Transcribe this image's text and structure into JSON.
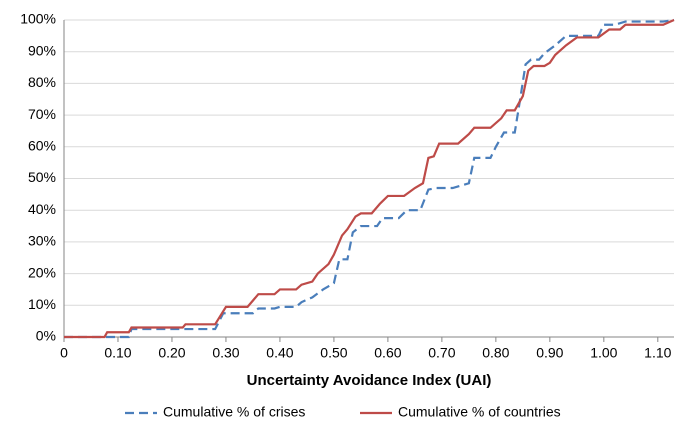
{
  "chart_data": {
    "type": "line",
    "x_label": "Uncertainty Avoidance Index (UAI)",
    "xlim": [
      0,
      1.13
    ],
    "xticks": [
      0,
      {
        "value": 0.1,
        "label": "0.10"
      },
      {
        "value": 0.2,
        "label": "0.20"
      },
      {
        "value": 0.3,
        "label": "0.30"
      },
      {
        "value": 0.4,
        "label": "0.40"
      },
      {
        "value": 0.5,
        "label": "0.50"
      },
      {
        "value": 0.6,
        "label": "0.60"
      },
      {
        "value": 0.7,
        "label": "0.70"
      },
      {
        "value": 0.8,
        "label": "0.80"
      },
      {
        "value": 0.9,
        "label": "0.90"
      },
      {
        "value": 1.0,
        "label": "1.00"
      },
      {
        "value": 1.1,
        "label": "1.10"
      }
    ],
    "ylim": [
      0,
      100
    ],
    "yticks": [
      {
        "value": 0,
        "label": "0%"
      },
      {
        "value": 10,
        "label": "10%"
      },
      {
        "value": 20,
        "label": "20%"
      },
      {
        "value": 30,
        "label": "30%"
      },
      {
        "value": 40,
        "label": "40%"
      },
      {
        "value": 50,
        "label": "50%"
      },
      {
        "value": 60,
        "label": "60%"
      },
      {
        "value": 70,
        "label": "70%"
      },
      {
        "value": 80,
        "label": "80%"
      },
      {
        "value": 90,
        "label": "90%"
      },
      {
        "value": 100,
        "label": "100%"
      }
    ],
    "grid": true,
    "legend": "bottom",
    "series": [
      {
        "name": "Cumulative % of crises",
        "color": "#4a7ebb",
        "style": "dashed",
        "x": [
          0,
          0.12,
          0.125,
          0.28,
          0.295,
          0.35,
          0.36,
          0.39,
          0.4,
          0.43,
          0.44,
          0.46,
          0.48,
          0.49,
          0.5,
          0.51,
          0.525,
          0.535,
          0.55,
          0.58,
          0.59,
          0.62,
          0.635,
          0.66,
          0.675,
          0.69,
          0.72,
          0.75,
          0.76,
          0.79,
          0.8,
          0.815,
          0.835,
          0.845,
          0.855,
          0.865,
          0.88,
          0.89,
          0.91,
          0.93,
          0.99,
          1.0,
          1.02,
          1.04,
          1.11,
          1.13
        ],
        "values": [
          0,
          0,
          2.5,
          2.5,
          7.5,
          7.5,
          9,
          9,
          9.5,
          9.5,
          11,
          12.5,
          15,
          16,
          17,
          24.5,
          24.5,
          33,
          35,
          35,
          37.5,
          37.5,
          40,
          40,
          46.5,
          47,
          47,
          48.5,
          56.5,
          56.5,
          60,
          64.5,
          64.5,
          75,
          86,
          87.5,
          87.5,
          89.5,
          92,
          95,
          95,
          98.5,
          98.5,
          99.5,
          99.5,
          100
        ]
      },
      {
        "name": "Cumulative % of countries",
        "color": "#be4b48",
        "style": "solid",
        "x": [
          0,
          0.075,
          0.08,
          0.12,
          0.125,
          0.22,
          0.225,
          0.28,
          0.3,
          0.34,
          0.36,
          0.39,
          0.4,
          0.43,
          0.44,
          0.46,
          0.47,
          0.49,
          0.5,
          0.515,
          0.525,
          0.54,
          0.55,
          0.57,
          0.585,
          0.6,
          0.63,
          0.65,
          0.665,
          0.675,
          0.685,
          0.695,
          0.73,
          0.75,
          0.76,
          0.79,
          0.81,
          0.82,
          0.835,
          0.85,
          0.86,
          0.87,
          0.89,
          0.9,
          0.91,
          0.93,
          0.95,
          0.99,
          1.01,
          1.03,
          1.04,
          1.11,
          1.13
        ],
        "values": [
          0,
          0,
          1.5,
          1.5,
          3,
          3,
          4,
          4,
          9.5,
          9.5,
          13.5,
          13.5,
          15,
          15,
          16.5,
          17.5,
          20,
          23,
          26,
          32,
          34,
          38,
          39,
          39,
          42,
          44.5,
          44.5,
          47,
          48.5,
          56.5,
          57,
          61,
          61,
          64,
          66,
          66,
          69,
          71.5,
          71.5,
          76,
          84,
          85.5,
          85.5,
          86.5,
          89,
          92,
          94.5,
          94.5,
          97,
          97,
          98.5,
          98.5,
          100
        ]
      }
    ]
  }
}
